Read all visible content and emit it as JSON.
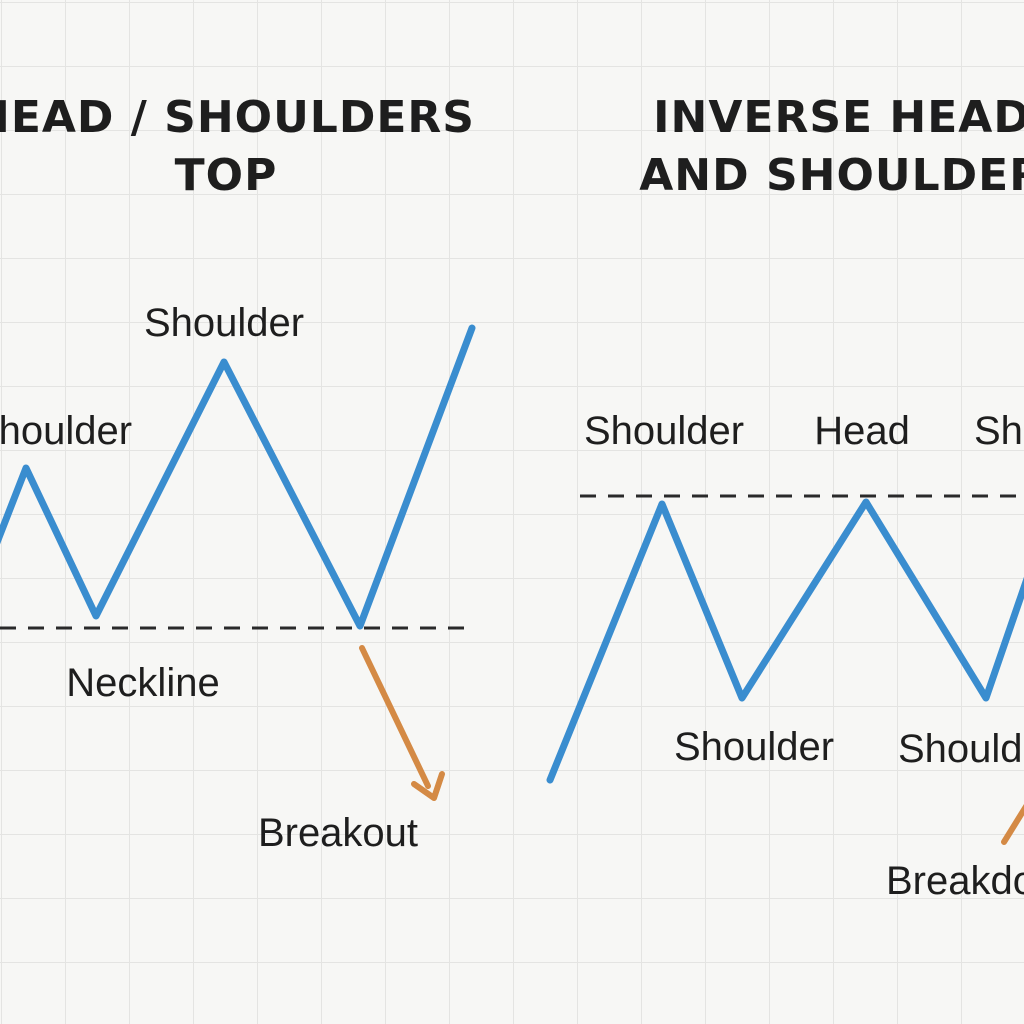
{
  "diagram": {
    "left_panel": {
      "title_line1": "HEAD / SHOULDERS",
      "title_line2": "TOP",
      "labels": {
        "shoulder_left": "Shoulder",
        "head": "Shoulder",
        "neckline": "Neckline",
        "breakout": "Breakout"
      }
    },
    "right_panel": {
      "title_line1": "INVERSE HEAD",
      "title_line2": "AND SHOULDERS",
      "labels": {
        "top_left": "Shoulder",
        "top_head": "Head",
        "top_right": "Shoulder",
        "bottom_left": "Shoulder",
        "bottom_right": "Shoulder",
        "breakout": "Breakdown"
      }
    },
    "colors": {
      "price_line": "#3a8dcf",
      "arrow": "#d48a45",
      "dashed_line": "#2a2a2a",
      "text": "#1e1e1e",
      "background": "#f7f7f5",
      "grid": "#e4e4e2"
    }
  }
}
